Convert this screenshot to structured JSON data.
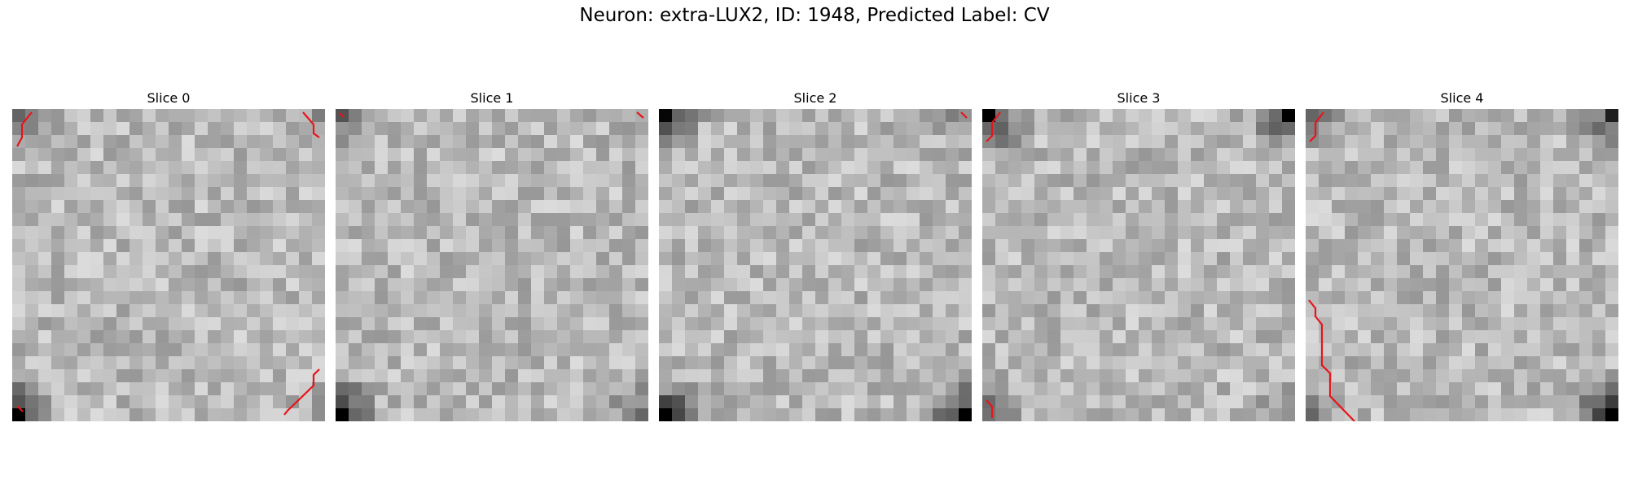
{
  "figure": {
    "title": "Neuron: extra-LUX2, ID: 1948, Predicted Label: CV"
  },
  "panels": [
    {
      "title": "Slice 0",
      "corner_darkness": {
        "tl": 0.35,
        "tr": 0.15,
        "bl": 0.95,
        "br": 0.15
      },
      "seed": 11
    },
    {
      "title": "Slice 1",
      "corner_darkness": {
        "tl": 0.45,
        "tr": 0.2,
        "bl": 0.95,
        "br": 0.5
      },
      "seed": 23
    },
    {
      "title": "Slice 2",
      "corner_darkness": {
        "tl": 0.85,
        "tr": 0.35,
        "bl": 0.95,
        "br": 0.95
      },
      "seed": 37
    },
    {
      "title": "Slice 3",
      "corner_darkness": {
        "tl": 0.95,
        "tr": 0.95,
        "bl": 0.55,
        "br": 0.3
      },
      "seed": 41
    },
    {
      "title": "Slice 4",
      "corner_darkness": {
        "tl": 0.35,
        "tr": 0.65,
        "bl": 0.3,
        "br": 0.95
      },
      "seed": 53
    }
  ],
  "contour_color": "#e8141a"
}
